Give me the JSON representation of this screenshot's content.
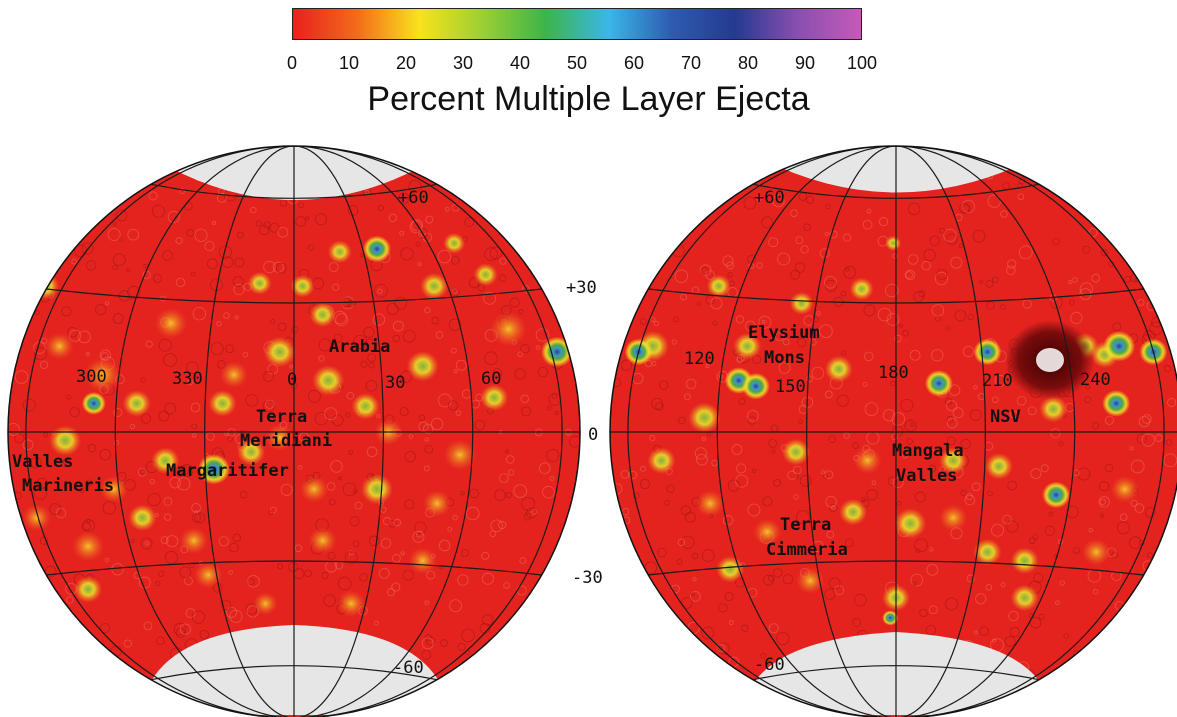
{
  "colorbar": {
    "ticks": [
      "0",
      "10",
      "20",
      "30",
      "40",
      "50",
      "60",
      "70",
      "80",
      "90",
      "100"
    ],
    "title": "Percent Multiple Layer Ejecta",
    "stops": [
      "#e8201e",
      "#f36a1a",
      "#f9e21c",
      "#9ccf34",
      "#3cb44a",
      "#3ab7e8",
      "#2e5bb0",
      "#243a8f",
      "#8a4fb0",
      "#c55ab8"
    ]
  },
  "colors": {
    "background": "#e4231f",
    "pole": "#e6e6e6",
    "grid": "#1a1a1a"
  },
  "left_map": {
    "lat_labels": {
      "p60": "+60",
      "m60": "-60"
    },
    "lon_labels": [
      "300",
      "330",
      "0",
      "30",
      "60"
    ],
    "regions": {
      "arabia": "Arabia",
      "terra_meridiani_1": "Terra",
      "terra_meridiani_2": "Meridiani",
      "margaritifer": "Margaritifer",
      "valles_1": "Valles",
      "valles_2": "Marineris"
    }
  },
  "right_map": {
    "lat_labels": {
      "p60": "+60",
      "m60": "-60"
    },
    "lon_labels": [
      "120",
      "150",
      "180",
      "210",
      "240"
    ],
    "regions": {
      "elysium_1": "Elysium",
      "elysium_2": "Mons",
      "nsv": "NSV",
      "mangala_1": "Mangala",
      "mangala_2": "Valles",
      "cimmeria_1": "Terra",
      "cimmeria_2": "Cimmeria"
    }
  },
  "lat_axis": {
    "p30": "+30",
    "zero": "0",
    "m30": "-30"
  }
}
